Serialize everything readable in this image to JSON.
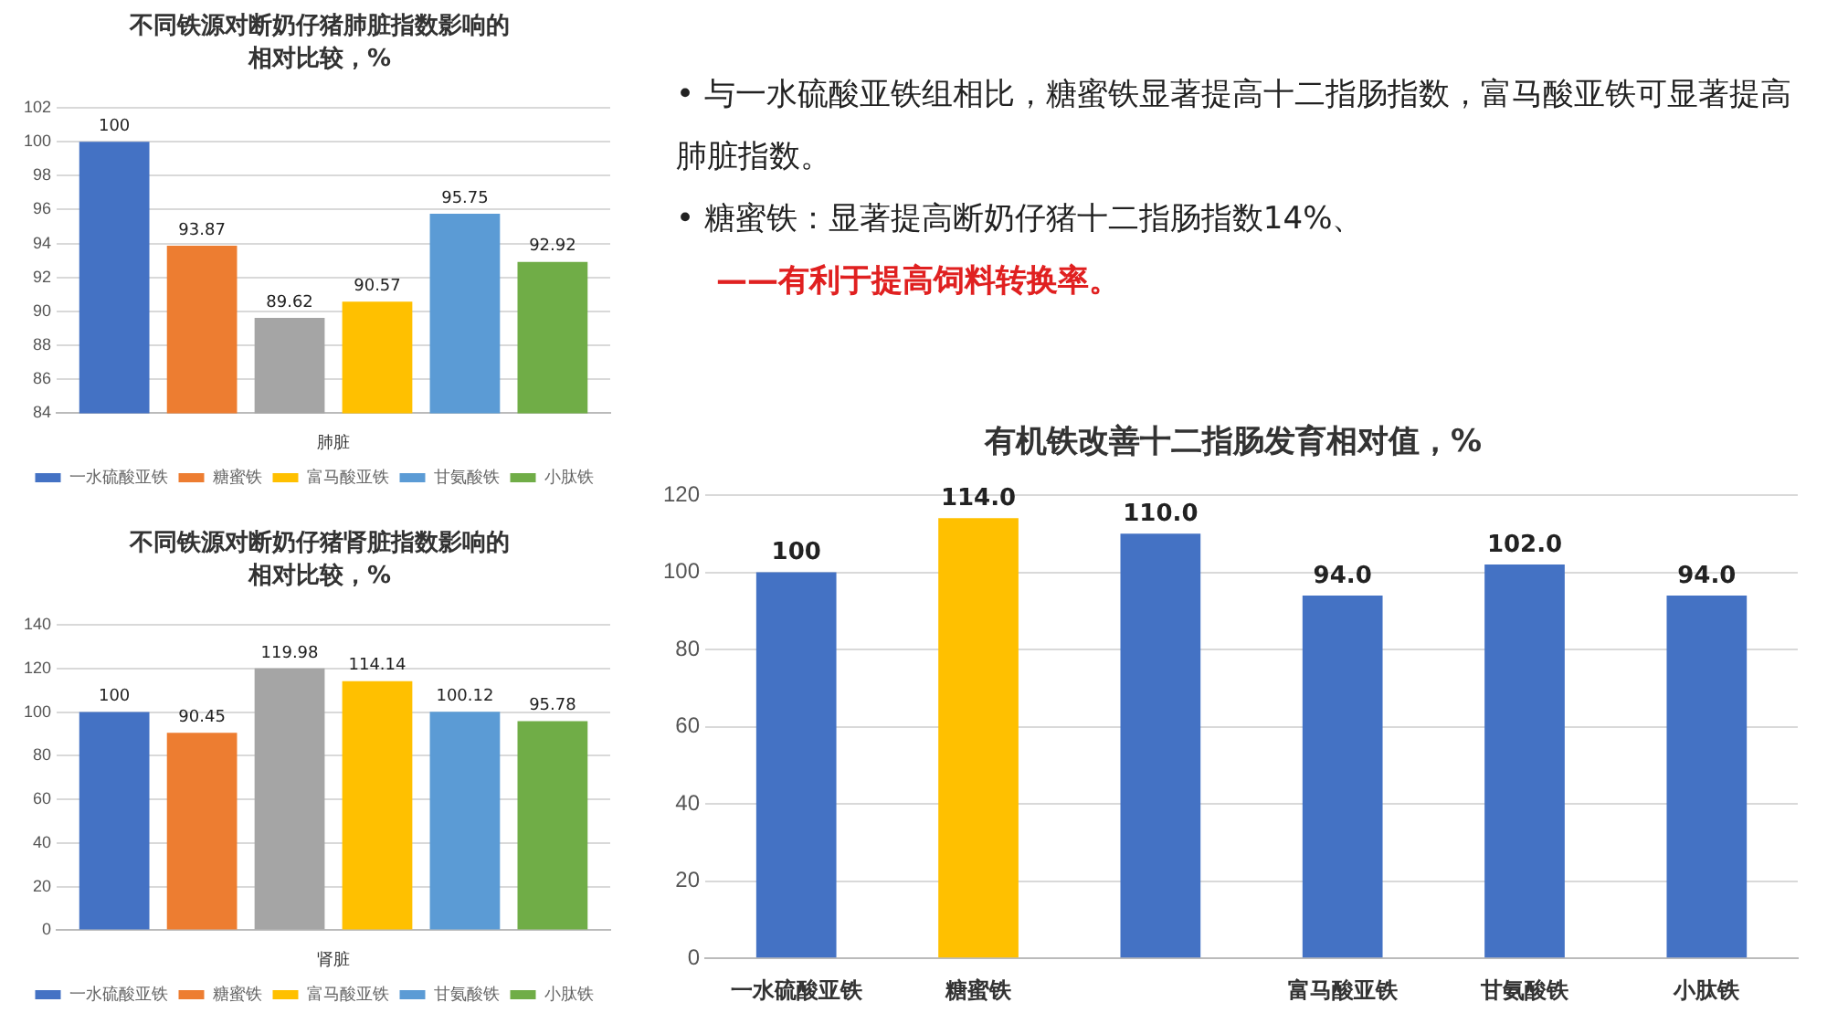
{
  "chart_data": [
    {
      "type": "bar",
      "title": "不同铁源对断奶仔猪肺脏指数影响的相对比较，%",
      "categories": [
        "肺脏"
      ],
      "series": [
        {
          "name": "一水硫酸亚铁",
          "color": "#4472c4",
          "values": [
            100
          ]
        },
        {
          "name": "糖蜜铁",
          "color": "#ed7d31",
          "values": [
            93.87
          ]
        },
        {
          "color": "#a5a5a5",
          "values": [
            89.62
          ]
        },
        {
          "name": "富马酸亚铁",
          "color": "#ffc000",
          "values": [
            90.57
          ]
        },
        {
          "name": "甘氨酸铁",
          "color": "#5b9bd5",
          "values": [
            95.75
          ]
        },
        {
          "name": "小肽铁",
          "color": "#70ad47",
          "values": [
            92.92
          ]
        }
      ],
      "ylim": [
        84,
        102
      ],
      "yticks": [
        84,
        86,
        88,
        90,
        92,
        94,
        96,
        98,
        100,
        102
      ],
      "grid": "y",
      "legend": "bottom",
      "data_labels": true
    },
    {
      "type": "bar",
      "title": "不同铁源对断奶仔猪肾脏指数影响的相对比较，%",
      "categories": [
        "肾脏"
      ],
      "series": [
        {
          "name": "一水硫酸亚铁",
          "color": "#4472c4",
          "values": [
            100
          ]
        },
        {
          "name": "糖蜜铁",
          "color": "#ed7d31",
          "values": [
            90.45
          ]
        },
        {
          "color": "#a5a5a5",
          "values": [
            119.98
          ]
        },
        {
          "name": "富马酸亚铁",
          "color": "#ffc000",
          "values": [
            114.14
          ]
        },
        {
          "name": "甘氨酸铁",
          "color": "#5b9bd5",
          "values": [
            100.12
          ]
        },
        {
          "name": "小肽铁",
          "color": "#70ad47",
          "values": [
            95.78
          ]
        }
      ],
      "ylim": [
        0,
        140
      ],
      "yticks": [
        0,
        20,
        40,
        60,
        80,
        100,
        120,
        140
      ],
      "grid": "y",
      "legend": "bottom",
      "data_labels": true
    },
    {
      "type": "other",
      "annotations": [
        "•  与一水硫酸亚铁组相比，糖蜜铁显著提高十二指肠指数，富马酸亚铁可显著提高肺脏指数。",
        "•  糖蜜铁：显著提高断奶仔猪十二指肠指数14%、",
        "——有利于提高饲料转换率。"
      ]
    },
    {
      "type": "bar",
      "title": "有机铁改善十二指肠发育相对值，%",
      "categories": [
        "一水硫酸亚铁",
        "糖蜜铁",
        null,
        "富马酸亚铁",
        "甘氨酸铁",
        "小肽铁"
      ],
      "values": [
        100,
        114,
        110,
        94,
        102,
        94
      ],
      "colors": [
        "#4472c4",
        "#ffc000",
        "#4472c4",
        "#4472c4",
        "#4472c4",
        "#4472c4"
      ],
      "value_labels": [
        "100",
        "114.0",
        "110.0",
        "94.0",
        "102.0",
        "94.0"
      ],
      "ylim": [
        0,
        120
      ],
      "yticks": [
        0,
        20,
        40,
        60,
        80,
        100,
        120
      ],
      "grid": "y"
    }
  ]
}
